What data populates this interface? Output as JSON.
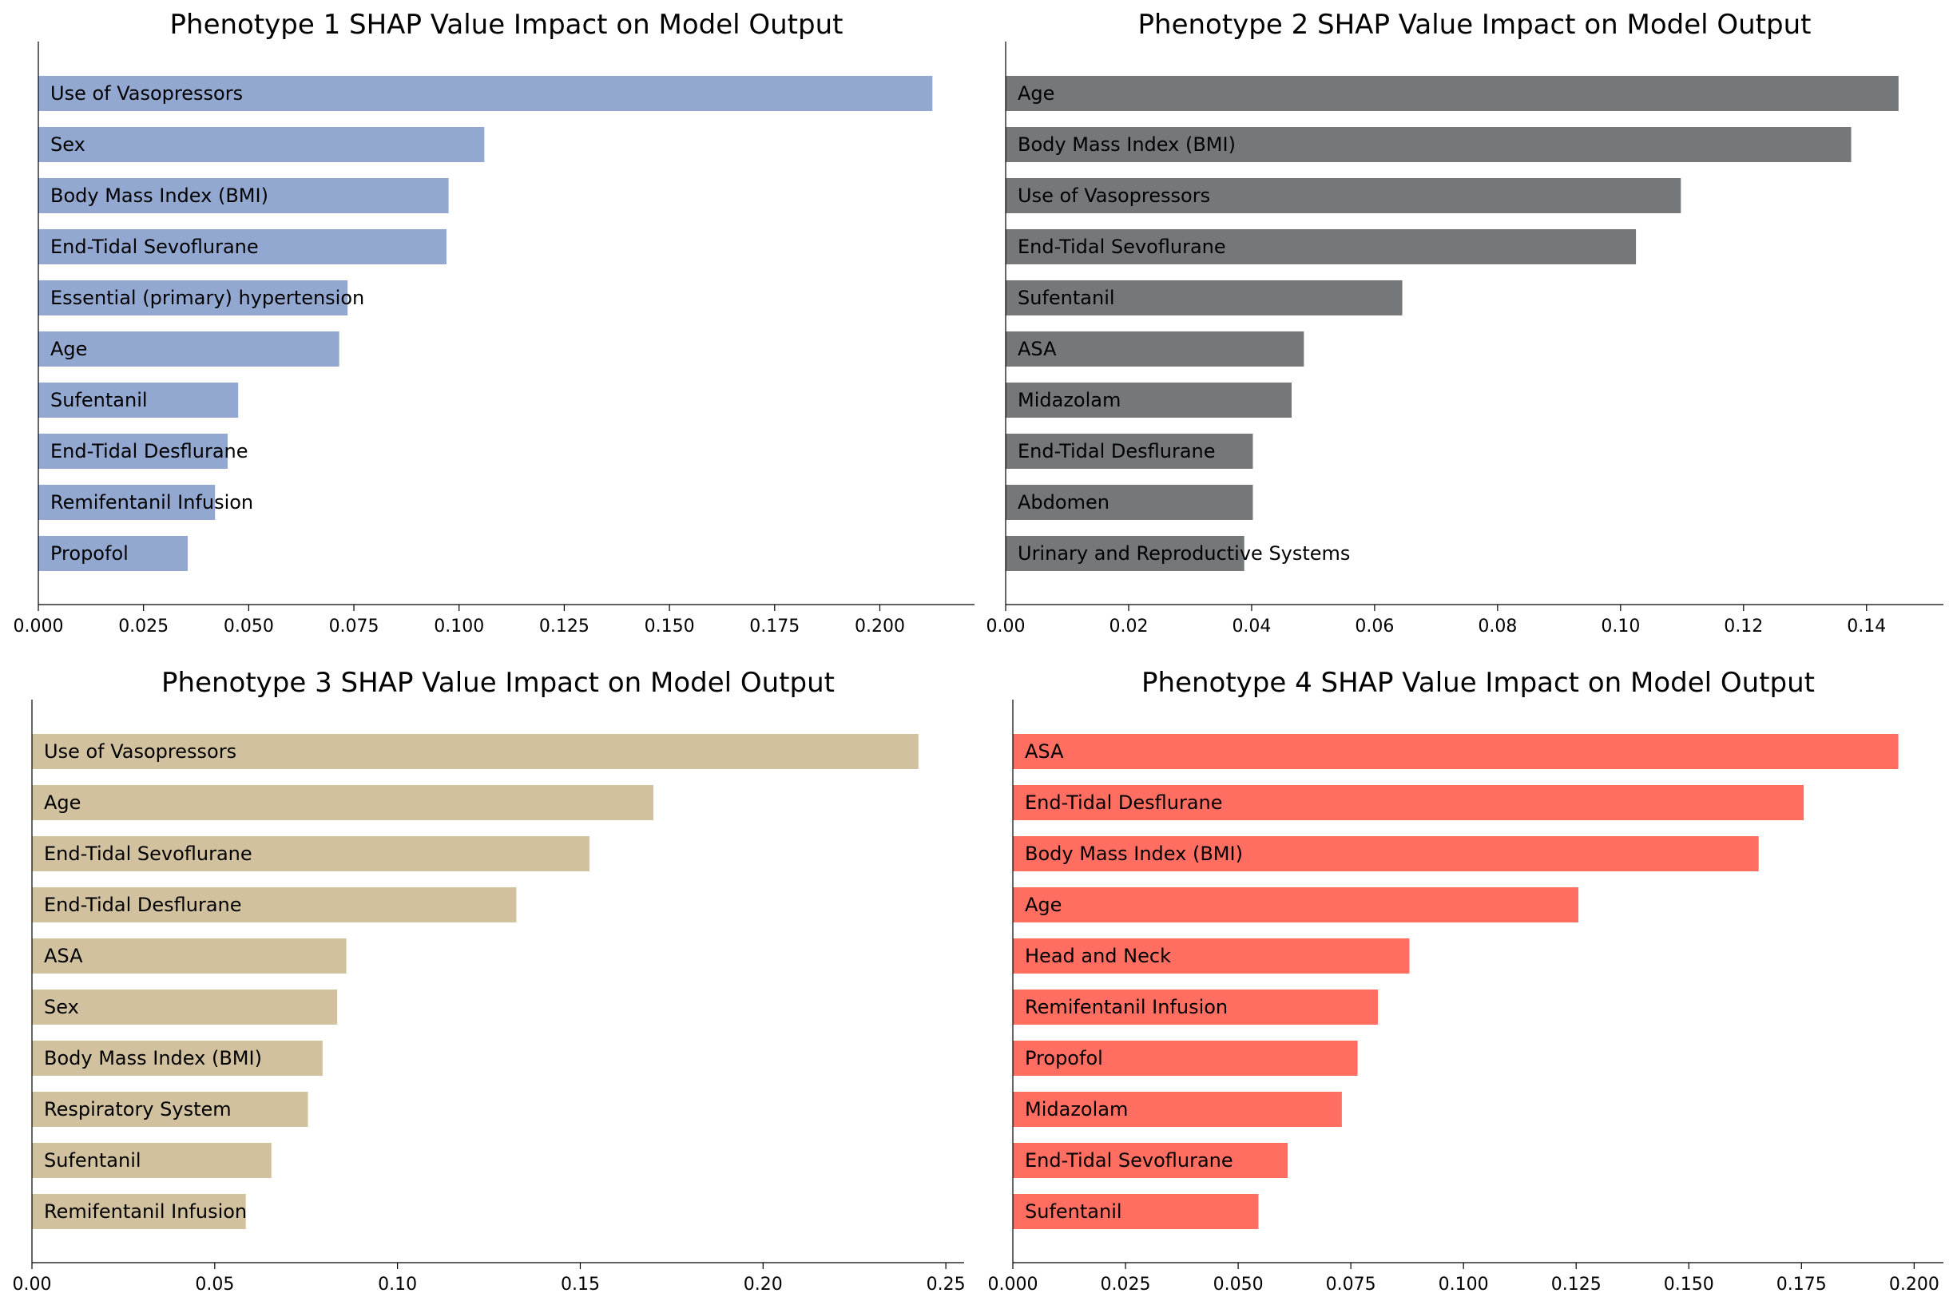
{
  "chart_data": [
    {
      "type": "bar",
      "orientation": "horizontal",
      "title": "Phenotype 1 SHAP Value Impact on Model Output",
      "color": "#92a8d1",
      "categories": [
        "Use of Vasopressors",
        "Sex",
        "Body Mass Index (BMI)",
        "End-Tidal Sevoflurane",
        "Essential (primary) hypertension",
        "Age",
        "Sufentanil",
        "End-Tidal Desflurane",
        "Remifentanil Infusion",
        "Propofol"
      ],
      "values": [
        0.2125,
        0.106,
        0.0975,
        0.097,
        0.0735,
        0.0715,
        0.0475,
        0.045,
        0.042,
        0.0355
      ],
      "xlim": [
        0,
        0.2225
      ],
      "xticks": [
        "0.000",
        "0.025",
        "0.050",
        "0.075",
        "0.100",
        "0.125",
        "0.150",
        "0.175",
        "0.200"
      ],
      "grid": false
    },
    {
      "type": "bar",
      "orientation": "horizontal",
      "title": "Phenotype 2 SHAP Value Impact on Model Output",
      "color": "#75787b",
      "categories": [
        "Age",
        "Body Mass Index (BMI)",
        "Use of Vasopressors",
        "End-Tidal Sevoflurane",
        "Sufentanil",
        "ASA",
        "Midazolam",
        "End-Tidal Desflurane",
        "Abdomen",
        "Urinary and Reproductive Systems"
      ],
      "values": [
        0.1452,
        0.1375,
        0.1098,
        0.1025,
        0.0645,
        0.0485,
        0.0465,
        0.0402,
        0.0402,
        0.0388
      ],
      "xlim": [
        0,
        0.1525
      ],
      "xticks": [
        "0.00",
        "0.02",
        "0.04",
        "0.06",
        "0.08",
        "0.10",
        "0.12",
        "0.14"
      ],
      "grid": false
    },
    {
      "type": "bar",
      "orientation": "horizontal",
      "title": "Phenotype 3 SHAP Value Impact on Model Output",
      "color": "#d1c19f",
      "categories": [
        "Use of Vasopressors",
        "Age",
        "End-Tidal Sevoflurane",
        "End-Tidal Desflurane",
        "ASA",
        "Sex",
        "Body Mass Index (BMI)",
        "Respiratory System",
        "Sufentanil",
        "Remifentanil Infusion"
      ],
      "values": [
        0.2425,
        0.17,
        0.1525,
        0.1325,
        0.086,
        0.0835,
        0.0795,
        0.0755,
        0.0655,
        0.0585
      ],
      "xlim": [
        0,
        0.255
      ],
      "xticks": [
        "0.00",
        "0.05",
        "0.10",
        "0.15",
        "0.20",
        "0.25"
      ],
      "grid": false
    },
    {
      "type": "bar",
      "orientation": "horizontal",
      "title": "Phenotype 4 SHAP Value Impact on Model Output",
      "color": "#ff6e61",
      "categories": [
        "ASA",
        "End-Tidal Desflurane",
        "Body Mass Index (BMI)",
        "Age",
        "Head and Neck",
        "Remifentanil Infusion",
        "Propofol",
        "Midazolam",
        "End-Tidal Sevoflurane",
        "Sufentanil"
      ],
      "values": [
        0.1965,
        0.1755,
        0.1655,
        0.1255,
        0.088,
        0.081,
        0.0765,
        0.073,
        0.061,
        0.0545
      ],
      "xlim": [
        0,
        0.2065
      ],
      "xticks": [
        "0.000",
        "0.025",
        "0.050",
        "0.075",
        "0.100",
        "0.125",
        "0.150",
        "0.175",
        "0.200"
      ],
      "grid": false
    }
  ]
}
